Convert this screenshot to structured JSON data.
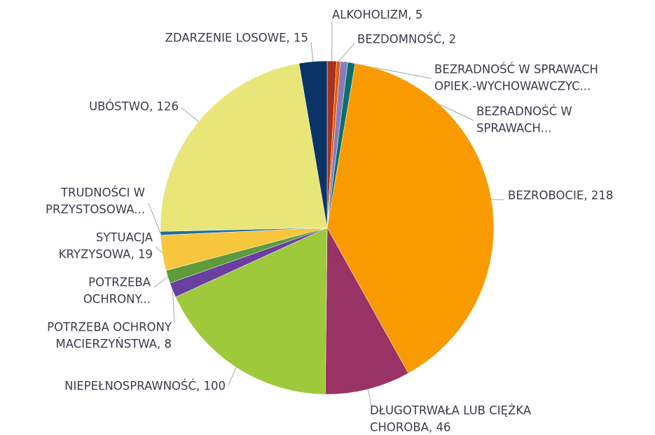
{
  "chart_data": {
    "type": "pie",
    "labels": [
      [
        "ALKOHOLIZM, 5"
      ],
      [
        "BEZDOMNOŚĆ, 2"
      ],
      [
        "BEZRADNOŚĆ W SPRAWACH",
        "OPIEK.-WYCHOWAWCZYC..."
      ],
      [
        "BEZRADNOŚĆ W",
        "SPRAWACH..."
      ],
      [
        "BEZROBOCIE, 218"
      ],
      [
        "DŁUGOTRWAŁA LUB CIĘŻKA",
        "CHOROBA, 46"
      ],
      [
        "NIEPEŁNOSPRAWNOŚĆ, 100"
      ],
      [
        "POTRZEBA OCHRONY",
        "MACIERZYŃSTWA, 8"
      ],
      [
        "POTRZEBA",
        "OCHRONY..."
      ],
      [
        "SYTUACJA",
        "KRYZYSOWA, 19"
      ],
      [
        "TRUDNOŚCI W",
        "PRZYSTOSOWA..."
      ],
      [
        "UBÓSTWO, 126"
      ],
      [
        "ZDARZENIE LOSOWE, 15"
      ]
    ],
    "values": [
      5,
      2,
      4,
      4,
      218,
      46,
      100,
      8,
      7,
      19,
      2,
      126,
      15
    ],
    "colors": [
      "#a8321c",
      "#e8590c",
      "#8a7cb8",
      "#0b6e6e",
      "#f99b00",
      "#993366",
      "#9dc93a",
      "#6a3fa0",
      "#5e9b3a",
      "#f7c63c",
      "#1a6fa0",
      "#e8e679",
      "#0a3466"
    ]
  }
}
